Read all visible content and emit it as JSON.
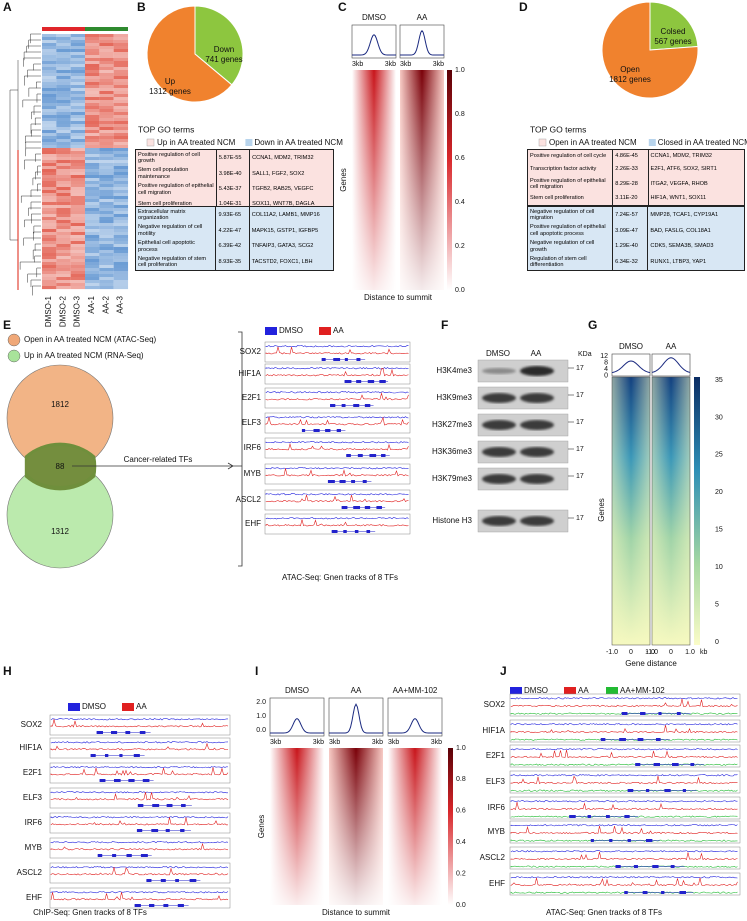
{
  "panel_labels": [
    "A",
    "B",
    "C",
    "D",
    "E",
    "F",
    "G",
    "H",
    "I",
    "J"
  ],
  "panel_a": {
    "samples": [
      "DMSO-1",
      "DMSO-2",
      "DMSO-3",
      "AA-1",
      "AA-2",
      "AA-3"
    ]
  },
  "chart_data": [
    {
      "type": "pie",
      "categories": [
        "Down",
        "Up"
      ],
      "values": [
        741,
        1312
      ],
      "value_labels": [
        "741 genes",
        "1312 genes"
      ],
      "colors": [
        "#8dc63f",
        "#f0822e"
      ]
    },
    {
      "type": "pie",
      "categories": [
        "Colsed",
        "Open"
      ],
      "values": [
        567,
        1812
      ],
      "value_labels": [
        "567 genes",
        "1812 genes"
      ],
      "colors": [
        "#8dc63f",
        "#f0822e"
      ]
    }
  ],
  "panel_b": {
    "heading": "TOP GO terms",
    "legend": [
      "Up in AA treated NCM",
      "Down in AA treated NCM"
    ],
    "up_rows": [
      [
        "Positive regulation of cell growth",
        "5.87E-55",
        "CCNA1, MDM2, TRIM32"
      ],
      [
        "Stem cell population maintenance",
        "3.98E-40",
        "SALL1, FGF2, SOX2"
      ],
      [
        "Positive regulation of epithelial cell migration",
        "5.43E-37",
        "TGFB2, RAB25, VEGFC"
      ],
      [
        "Stem cell proliferation",
        "1.04E-31",
        "SOX11, WNT7B, DAGLA"
      ]
    ],
    "down_rows": [
      [
        "Extracellular matrix organization",
        "9.93E-65",
        "COL11A2, LAMB1, MMP16"
      ],
      [
        "Negative regulation of cell motility",
        "4.22E-47",
        "MAPK15, GSTP1, IGFBP5"
      ],
      [
        "Epithelial cell apoptotic process",
        "6.39E-42",
        "TNFAIP3, GATA3, SCG2"
      ],
      [
        "Negative regulation of stem cell proliferation",
        "8.93E-35",
        "TACSTD2, FOXC1, LBH"
      ]
    ]
  },
  "panel_c": {
    "columns": [
      "DMSO",
      "AA"
    ],
    "flank": "3kb",
    "y_label": "Genes",
    "x_label": "Distance to summit",
    "colorbar": [
      "1.0",
      "0.8",
      "0.6",
      "0.4",
      "0.2",
      "0.0"
    ]
  },
  "panel_d": {
    "heading": "TOP GO terms",
    "legend": [
      "Open in AA treated NCM",
      "Closed in AA treated NCM"
    ],
    "up_rows": [
      [
        "Positive regulation of cell cycle",
        "4.86E-45",
        "CCNA1, MDM2, TRIM32"
      ],
      [
        "Transcription factor activity",
        "2.26E-33",
        "E2F1, ATF6, SOX2, SIRT1"
      ],
      [
        "Positive regulation of epithelial cell migration",
        "8.29E-28",
        "ITGA2, VEGFA, RHOB"
      ],
      [
        "Stem cell proliferation",
        "3.11E-20",
        "HIF1A, WNT1, SOX11"
      ]
    ],
    "down_rows": [
      [
        "Negative regulation of cell migration",
        "7.24E-57",
        "MMP28, TCAF1, CYP19A1"
      ],
      [
        "Positive regulation of epithelial cell apoptotic process",
        "3.09E-47",
        "BAD, FASLG, COL18A1"
      ],
      [
        "Negative regulation of cell growth",
        "1.29E-40",
        "CDK5, SEMA3B, SMAD3"
      ],
      [
        "Regulation of stem cell differentiation",
        "6.34E-32",
        "RUNX1, LTBP3, YAP1"
      ]
    ]
  },
  "panel_e": {
    "legend": [
      "Open in AA treated NCM (ATAC-Seq)",
      "Up in AA treated NCM (RNA-Seq)"
    ],
    "venn": [
      "1812",
      "88",
      "1312"
    ],
    "arrow_label": "Cancer-related TFs",
    "track_legend": [
      "DMSO",
      "AA"
    ],
    "genes": [
      "SOX2",
      "HIF1A",
      "E2F1",
      "ELF3",
      "IRF6",
      "MYB",
      "ASCL2",
      "EHF"
    ],
    "caption": "ATAC-Seq: Gnen tracks of 8 TFs"
  },
  "panel_f": {
    "conditions": [
      "DMSO",
      "AA"
    ],
    "unit": "KDa",
    "rows": [
      "H3K4me3",
      "H3K9me3",
      "H3K27me3",
      "H3K36me3",
      "H3K79me3",
      "Histone H3"
    ],
    "size": "17"
  },
  "panel_g": {
    "columns": [
      "DMSO",
      "AA"
    ],
    "profile_ticks": [
      "12",
      "8",
      "4",
      "0"
    ],
    "x_ticks": [
      "-1.0",
      "0",
      "1.0"
    ],
    "x_unit": "kb",
    "x_label": "Gene distance",
    "y_label": "Genes",
    "colorbar": [
      "35",
      "30",
      "25",
      "20",
      "15",
      "10",
      "5",
      "0"
    ]
  },
  "panel_h": {
    "track_legend": [
      "DMSO",
      "AA"
    ],
    "genes": [
      "SOX2",
      "HIF1A",
      "E2F1",
      "ELF3",
      "IRF6",
      "MYB",
      "ASCL2",
      "EHF"
    ],
    "caption": "ChIP-Seq: Gnen tracks of 8 TFs"
  },
  "panel_i": {
    "columns": [
      "DMSO",
      "AA",
      "AA+MM-102"
    ],
    "profile_ticks": [
      "2.0",
      "1.0",
      "0.0"
    ],
    "flank": "3kb",
    "y_label": "Genes",
    "x_label": "Distance to summit",
    "colorbar": [
      "1.0",
      "0.8",
      "0.6",
      "0.4",
      "0.2",
      "0.0"
    ]
  },
  "panel_j": {
    "track_legend": [
      "DMSO",
      "AA",
      "AA+MM-102"
    ],
    "genes": [
      "SOX2",
      "HIF1A",
      "E2F1",
      "ELF3",
      "IRF6",
      "MYB",
      "ASCL2",
      "EHF"
    ],
    "caption": "ATAC-Seq: Gnen tracks of 8 TFs"
  }
}
